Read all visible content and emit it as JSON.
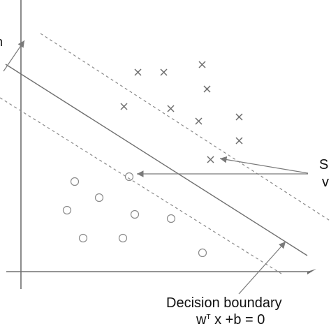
{
  "labels": {
    "left_edge_fragment": "n",
    "support_vectors_line1": "S",
    "support_vectors_line2": "v",
    "decision_boundary_line1": "Decision boundary",
    "decision_boundary_equation_prefix": "w",
    "decision_boundary_equation_superscript": "T",
    "decision_boundary_equation_suffix": " x +b = 0"
  },
  "colors": {
    "background": "#ffffff",
    "axis": "#707070",
    "marks": "#6d6d6d",
    "circles": "#8a8a8a",
    "text": "#111111"
  },
  "icons": {
    "cross_marker": "x-mark-icon",
    "circle_marker": "circle-marker-icon"
  }
}
